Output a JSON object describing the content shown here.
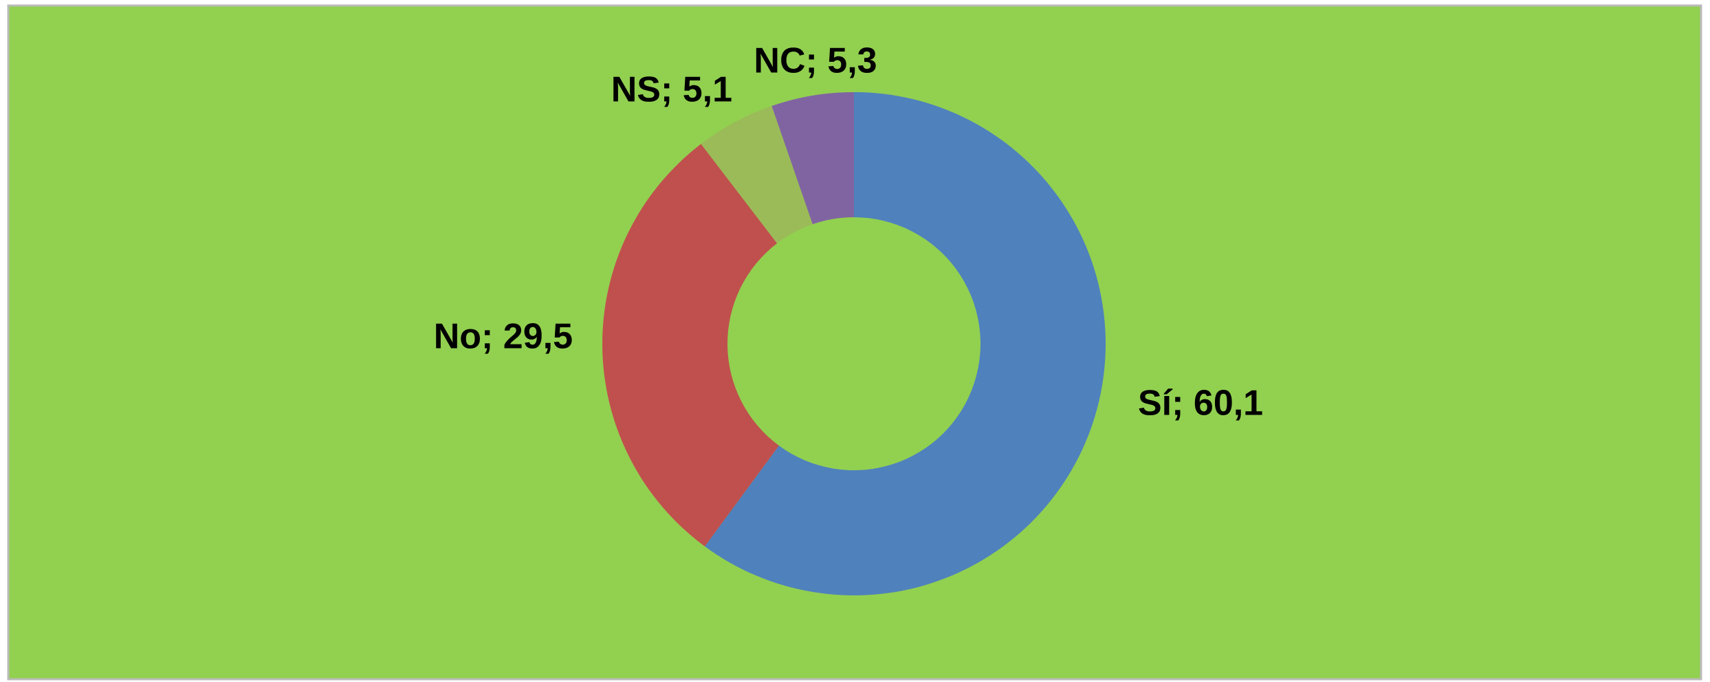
{
  "chart_data": {
    "type": "donut",
    "values": [
      60.1,
      29.5,
      5.1,
      5.3
    ],
    "value_labels": [
      "Sí; 60,1",
      "No; 29,5",
      "NS; 5,1",
      "NC; 5,3"
    ],
    "colors": [
      "#4f81bd",
      "#c0504d",
      "#9bbb59",
      "#8064a2"
    ],
    "background": "#92d050"
  }
}
